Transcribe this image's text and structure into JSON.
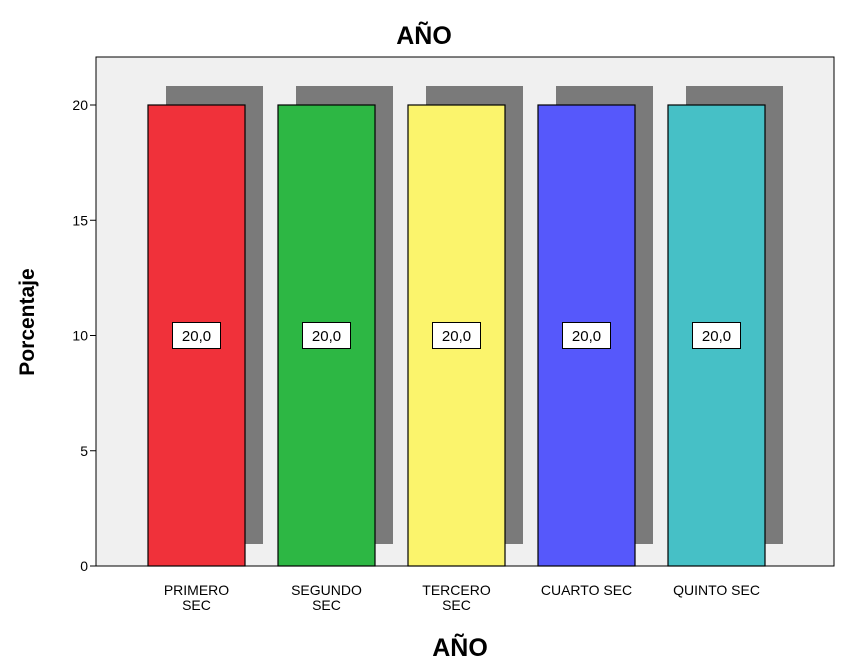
{
  "chart_data": {
    "type": "bar",
    "title": "AÑO",
    "xlabel": "AÑO",
    "ylabel": "Porcentaje",
    "categories": [
      [
        "PRIMERO",
        "SEC"
      ],
      [
        "SEGUNDO",
        "SEC"
      ],
      [
        "TERCERO",
        "SEC"
      ],
      [
        "CUARTO SEC"
      ],
      [
        "QUINTO SEC"
      ]
    ],
    "values": [
      20,
      20,
      20,
      20,
      20
    ],
    "data_labels": [
      "20,0",
      "20,0",
      "20,0",
      "20,0",
      "20,0"
    ],
    "colors": [
      "#f0313a",
      "#2db744",
      "#fbf46c",
      "#5658fb",
      "#46c0c6"
    ],
    "shadow_color": "#7a7a7a",
    "plot_background": "#f0f0f0",
    "ylim": [
      0,
      22
    ],
    "yticks": [
      0,
      5,
      10,
      15,
      20
    ],
    "grid": false,
    "style": "3d-shadow"
  }
}
